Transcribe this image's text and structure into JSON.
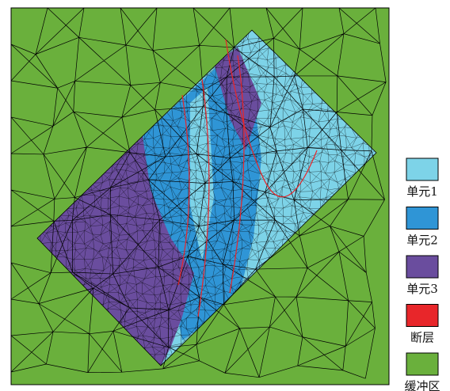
{
  "legend": {
    "items": [
      {
        "label": "单元1",
        "color": "#7dd3e8"
      },
      {
        "label": "单元2",
        "color": "#2f95d6"
      },
      {
        "label": "单元3",
        "color": "#6a4d9e"
      },
      {
        "label": "断层",
        "color": "#e8262a"
      },
      {
        "label": "缓冲区",
        "color": "#6ab03c"
      }
    ]
  }
}
